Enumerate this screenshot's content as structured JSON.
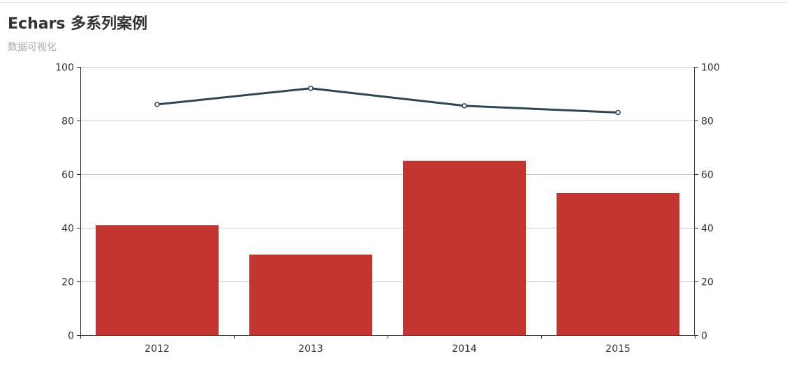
{
  "title": "Echars 多系列案例",
  "subtitle": "数据可视化",
  "colors": {
    "bar": "#c23531",
    "line": "#2f4554",
    "grid": "#cccccc",
    "axis": "#333333"
  },
  "chart_data": {
    "type": "bar",
    "categories": [
      "2012",
      "2013",
      "2014",
      "2015"
    ],
    "series": [
      {
        "type": "bar",
        "values": [
          41,
          30,
          65,
          53
        ],
        "y_axis": "left"
      },
      {
        "type": "line",
        "values": [
          86,
          92,
          85.5,
          83
        ],
        "y_axis": "right"
      }
    ],
    "ylim_left": [
      0,
      100
    ],
    "ylim_right": [
      0,
      100
    ],
    "yticks_left": [
      0,
      20,
      40,
      60,
      80,
      100
    ],
    "yticks_right": [
      0,
      20,
      40,
      60,
      80,
      100
    ],
    "grid": true,
    "legend": "none"
  }
}
